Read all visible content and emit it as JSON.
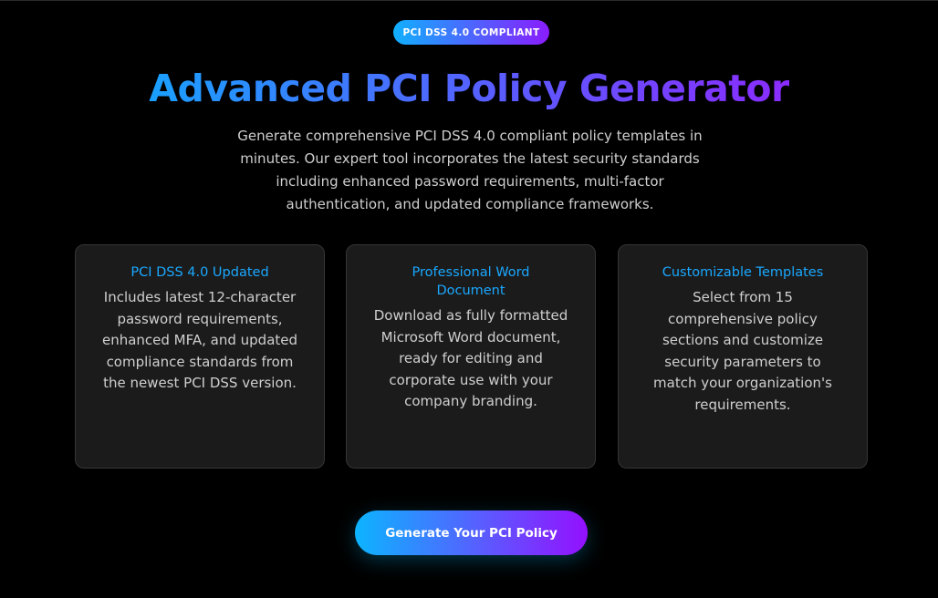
{
  "badge": "PCI DSS 4.0 COMPLIANT",
  "title": "Advanced PCI Policy Generator",
  "description": "Generate comprehensive PCI DSS 4.0 compliant policy templates in minutes. Our expert tool incorporates the latest security standards including enhanced password requirements, multi-factor authentication, and updated compliance frameworks.",
  "features": [
    {
      "title": "PCI DSS 4.0 Updated",
      "text": "Includes latest 12-character password requirements, enhanced MFA, and updated compliance standards from the newest PCI DSS version."
    },
    {
      "title": "Professional Word Document",
      "text": "Download as fully formatted Microsoft Word document, ready for editing and corporate use with your company branding."
    },
    {
      "title": "Customizable Templates",
      "text": "Select from 15 comprehensive policy sections and customize security parameters to match your organization's requirements."
    }
  ],
  "cta": "Generate Your PCI Policy",
  "colors": {
    "accent": "#1aa8ff",
    "gradient_start": "#0cb4ff",
    "gradient_end": "#9410ff"
  }
}
